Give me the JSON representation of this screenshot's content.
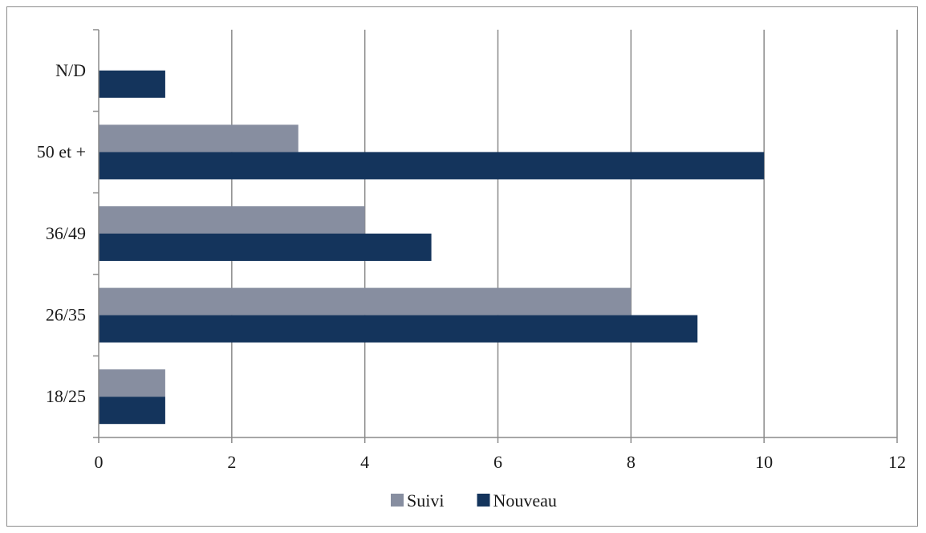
{
  "chart_data": {
    "type": "bar",
    "orientation": "horizontal",
    "categories": [
      "18/25",
      "26/35",
      "36/49",
      "50 et +",
      "N/D"
    ],
    "series": [
      {
        "name": "Suivi",
        "values": [
          1,
          8,
          4,
          3,
          null
        ],
        "color": "#878ea0"
      },
      {
        "name": "Nouveau",
        "values": [
          1,
          9,
          5,
          10,
          1
        ],
        "color": "#14345c"
      }
    ],
    "title": "",
    "xlabel": "",
    "ylabel": "",
    "xlim": [
      0,
      12
    ],
    "xticks": [
      "0",
      "2",
      "4",
      "6",
      "8",
      "10",
      "12"
    ],
    "grid": "vertical",
    "legend_position": "bottom"
  }
}
